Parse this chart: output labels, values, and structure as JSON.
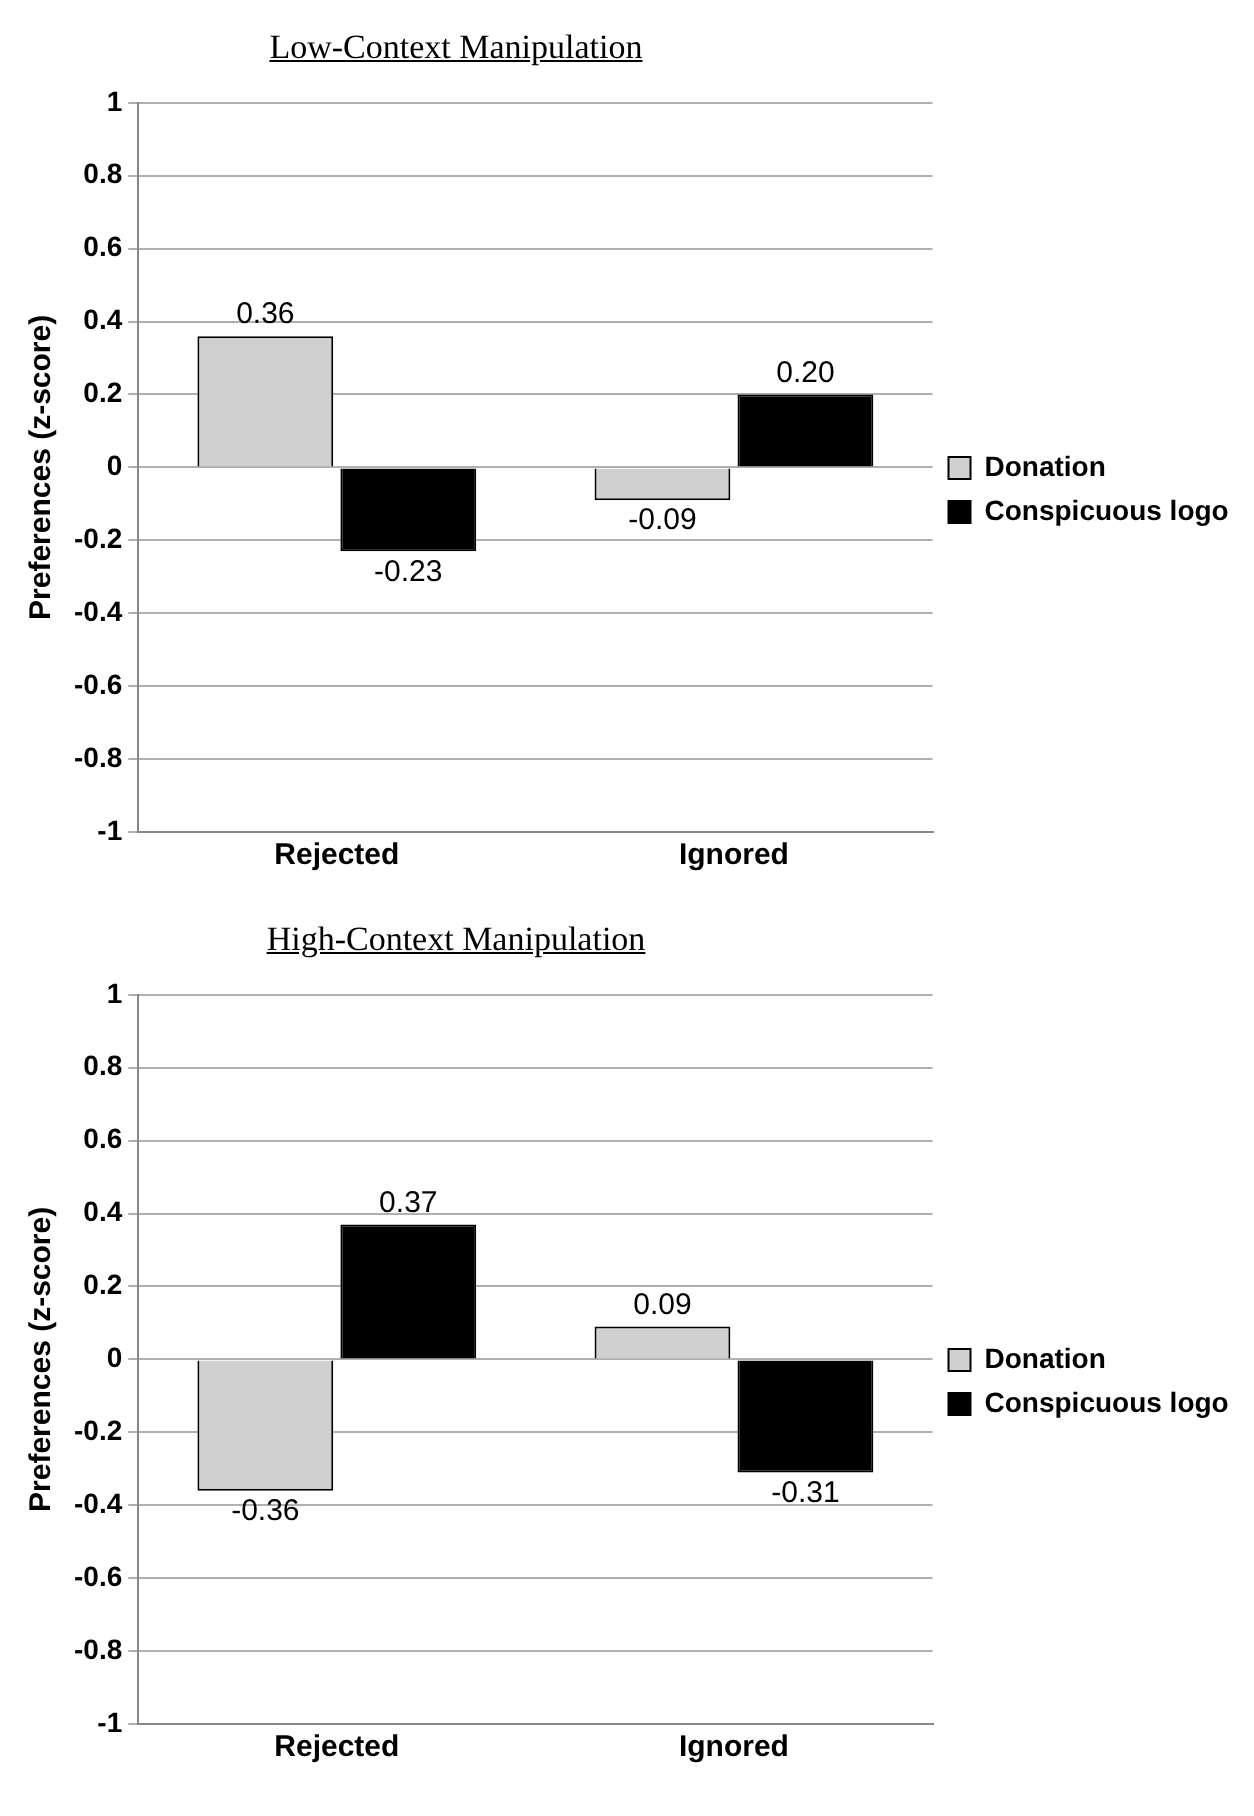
{
  "chart_data": [
    {
      "type": "bar",
      "title": "Low-Context Manipulation",
      "ylabel": "Preferences (z-score)",
      "categories": [
        "Rejected",
        "Ignored"
      ],
      "series": [
        {
          "name": "Donation",
          "color": "#d0d0d0",
          "values": [
            0.36,
            -0.09
          ],
          "value_labels": [
            "0.36",
            "-0.09"
          ]
        },
        {
          "name": "Conspicuous logo",
          "color": "#000000",
          "values": [
            -0.23,
            0.2
          ],
          "value_labels": [
            "-0.23",
            "0.20"
          ]
        }
      ],
      "ylim": [
        -1,
        1
      ],
      "yticks": [
        -1,
        -0.8,
        -0.6,
        -0.4,
        -0.2,
        0,
        0.2,
        0.4,
        0.6,
        0.8,
        1
      ],
      "grid": "y",
      "legend": "right"
    },
    {
      "type": "bar",
      "title": "High-Context Manipulation",
      "ylabel": "Preferences (z-score)",
      "categories": [
        "Rejected",
        "Ignored"
      ],
      "series": [
        {
          "name": "Donation",
          "color": "#d0d0d0",
          "values": [
            -0.36,
            0.09
          ],
          "value_labels": [
            "-0.36",
            "0.09"
          ]
        },
        {
          "name": "Conspicuous logo",
          "color": "#000000",
          "values": [
            0.37,
            -0.31
          ],
          "value_labels": [
            "0.37",
            "-0.31"
          ]
        }
      ],
      "ylim": [
        -1,
        1
      ],
      "yticks": [
        -1,
        -0.8,
        -0.6,
        -0.4,
        -0.2,
        0,
        0.2,
        0.4,
        0.6,
        0.8,
        1
      ],
      "grid": "y",
      "legend": "right"
    }
  ]
}
